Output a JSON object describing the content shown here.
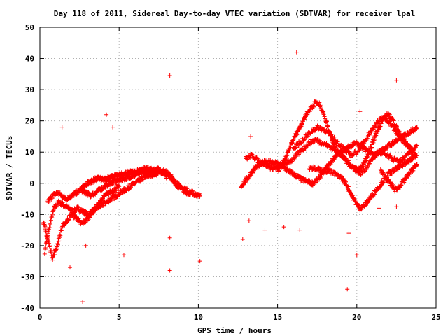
{
  "chart_data": {
    "type": "scatter",
    "title": "Day 118 of 2011, Sidereal Day-to-day VTEC variation (SDTVAR) for receiver lpal",
    "xlabel": "GPS time / hours",
    "ylabel": "SDTVAR / TECUs",
    "xlim": [
      0,
      25
    ],
    "ylim": [
      -40,
      50
    ],
    "x_ticks": [
      0,
      5,
      10,
      15,
      20,
      25
    ],
    "y_ticks": [
      -40,
      -30,
      -20,
      -10,
      0,
      10,
      20,
      30,
      40,
      50
    ],
    "grid": true,
    "marker": "+",
    "color": "#ff0000",
    "series": [
      {
        "points_description_only": false,
        "tracks": [
          {
            "x": [
              0.3,
              0.6,
              0.9,
              1.2,
              1.5,
              1.8,
              2.1,
              2.4,
              2.7,
              3.0,
              3.3,
              3.6,
              3.9,
              4.2,
              4.5,
              4.8,
              5.1,
              5.4,
              5.7,
              6.0,
              6.3,
              6.6,
              6.9,
              7.2,
              7.5,
              7.8,
              8.1,
              8.4,
              8.7,
              9.0,
              9.3,
              9.6,
              9.9,
              10.1
            ],
            "y": [
              -22,
              -14,
              -8,
              -6,
              -7,
              -8,
              -9,
              -8,
              -9,
              -10,
              -9,
              -8,
              -7,
              -6,
              -5,
              -4,
              -3,
              -2,
              -1,
              0,
              1,
              2,
              2.5,
              3,
              3.5,
              3.5,
              3,
              1,
              -1,
              -2,
              -3,
              -3,
              -4,
              -4
            ]
          },
          {
            "x": [
              0.5,
              0.8,
              1.1,
              1.4,
              1.7,
              2.0,
              2.3,
              2.6,
              2.9,
              3.2,
              3.5,
              3.8,
              4.1,
              4.4,
              4.7,
              5.0,
              5.3,
              5.6,
              5.9,
              6.2,
              6.5,
              6.8,
              7.1,
              7.4,
              7.7,
              8.0,
              8.3,
              8.6,
              8.9,
              9.2,
              9.5
            ],
            "y": [
              -6,
              -4,
              -3,
              -4,
              -5,
              -4,
              -3,
              -2,
              -3,
              -4,
              -3,
              -2,
              -1,
              0,
              0.5,
              1,
              1.5,
              2,
              2.5,
              3,
              3.5,
              4,
              4,
              4.5,
              4,
              3.5,
              2,
              0,
              -1,
              -2,
              -3
            ]
          },
          {
            "x": [
              0.2,
              0.5,
              0.8,
              1.1,
              1.4,
              1.7,
              2.0,
              2.3,
              2.6,
              2.9,
              3.2,
              3.5,
              3.8,
              4.1,
              4.4,
              4.7,
              5.0
            ],
            "y": [
              -12,
              -18,
              -24,
              -20,
              -14,
              -12,
              -10,
              -11,
              -13,
              -12,
              -10,
              -8,
              -6,
              -4,
              -3,
              -2,
              -1
            ]
          },
          {
            "x": [
              2.6,
              2.8,
              3.0,
              3.2,
              3.4,
              3.6,
              3.8,
              4.0,
              4.2,
              4.4,
              4.6,
              4.8,
              5.0,
              5.2,
              5.4,
              5.6,
              5.8,
              6.0,
              6.2,
              6.4,
              6.6,
              6.8,
              7.0,
              7.2,
              7.4,
              7.6,
              7.8,
              8.0
            ],
            "y": [
              -2,
              -1,
              0,
              0.5,
              1,
              1.5,
              1.5,
              1,
              1.5,
              2,
              2,
              2.5,
              2.5,
              3,
              3,
              3.5,
              3.5,
              3.5,
              4,
              4,
              4.5,
              4.5,
              4.5,
              4.5,
              4.5,
              4,
              3.5,
              2
            ]
          },
          {
            "x": [
              12.7,
              13.0,
              13.3,
              13.6,
              13.9,
              14.2,
              14.5,
              14.8,
              15.1,
              15.4,
              15.7,
              16.0,
              16.3,
              16.6,
              16.9,
              17.2,
              17.5,
              17.8,
              18.1,
              18.4,
              18.7,
              19.0,
              19.3,
              19.6,
              19.9,
              20.2,
              20.5,
              20.8,
              21.1,
              21.4,
              21.7,
              22.0,
              22.3,
              22.6,
              22.9,
              23.2,
              23.5,
              23.8
            ],
            "y": [
              -1,
              1,
              3,
              5,
              6,
              7,
              7,
              6.5,
              6,
              5,
              4,
              3,
              2,
              1,
              0.5,
              0,
              1,
              3,
              5,
              7,
              9,
              10,
              11,
              12,
              13,
              12,
              11,
              10,
              9,
              10,
              11,
              12,
              13,
              14,
              15,
              16,
              17,
              18
            ]
          },
          {
            "x": [
              13.0,
              13.4,
              13.8,
              14.2,
              14.6,
              15.0,
              15.4,
              15.8,
              16.2,
              16.6,
              17.0,
              17.4,
              17.8,
              18.2,
              18.6,
              19.0,
              19.4,
              19.8,
              20.2,
              20.6,
              21.0,
              21.4,
              21.8,
              22.2,
              22.6,
              23.0,
              23.4,
              23.8
            ],
            "y": [
              8,
              9,
              7,
              6,
              5,
              5,
              6,
              7,
              9,
              11,
              13,
              14,
              13,
              12,
              11,
              9,
              7,
              5,
              3,
              5,
              8,
              10,
              9,
              8,
              7,
              8,
              10,
              12
            ]
          },
          {
            "x": [
              15.0,
              15.3,
              15.6,
              15.9,
              16.2,
              16.5,
              16.8,
              17.1,
              17.4,
              17.7,
              18.0,
              18.3,
              18.6,
              18.9,
              19.2,
              19.5,
              19.8,
              20.1,
              20.4,
              20.7,
              21.0,
              21.3,
              21.6,
              21.9,
              22.2,
              22.5,
              22.8,
              23.1,
              23.4,
              23.7
            ],
            "y": [
              4,
              6,
              9,
              13,
              16,
              19,
              22,
              24,
              26,
              25,
              21,
              16,
              12,
              10,
              8,
              6,
              5,
              4,
              6,
              9,
              13,
              17,
              20,
              22,
              21,
              18,
              15,
              13,
              11,
              9
            ]
          },
          {
            "x": [
              16.0,
              16.4,
              16.8,
              17.2,
              17.6,
              18.0,
              18.4,
              18.8,
              19.2,
              19.6,
              20.0,
              20.4,
              20.8,
              21.2,
              21.6,
              22.0,
              22.4,
              22.8,
              23.2,
              23.6
            ],
            "y": [
              11,
              13,
              15,
              17,
              18,
              17,
              15,
              13,
              11,
              9,
              10,
              13,
              16,
              19,
              21,
              20,
              17,
              14,
              12,
              10
            ]
          },
          {
            "x": [
              17.0,
              17.4,
              17.8,
              18.2,
              18.6,
              19.0,
              19.3,
              19.6,
              19.9,
              20.2,
              20.5,
              20.8,
              21.1,
              21.4,
              21.7,
              22.0,
              22.3,
              22.6,
              22.9,
              23.2,
              23.5,
              23.8
            ],
            "y": [
              5,
              5,
              4,
              4,
              3,
              2,
              0,
              -3,
              -6,
              -8,
              -7,
              -5,
              -3,
              -1,
              1,
              3,
              4,
              5,
              6,
              7,
              8,
              9
            ]
          },
          {
            "x": [
              21.5,
              21.8,
              22.1,
              22.4,
              22.7,
              23.0,
              23.3,
              23.6,
              23.8
            ],
            "y": [
              4,
              2,
              0,
              -2,
              -1,
              1,
              3,
              5,
              6
            ]
          }
        ],
        "outliers": {
          "x": [
            8.2,
            16.2,
            22.5,
            4.2,
            4.6,
            1.4,
            13.3,
            2.7,
            1.9,
            8.2,
            10.1,
            19.4,
            20.0,
            5.3,
            8.2,
            2.9,
            12.8,
            13.2,
            14.2,
            15.4,
            16.4,
            19.5,
            21.4,
            22.5,
            20.2
          ],
          "y": [
            34.5,
            42,
            33,
            22,
            18,
            18,
            15,
            -38,
            -27,
            -28,
            -25,
            -34,
            -23,
            -23,
            -17.5,
            -20,
            -18,
            -12,
            -15,
            -14,
            -15,
            -16,
            -8,
            -7.5,
            23
          ]
        }
      }
    ]
  }
}
